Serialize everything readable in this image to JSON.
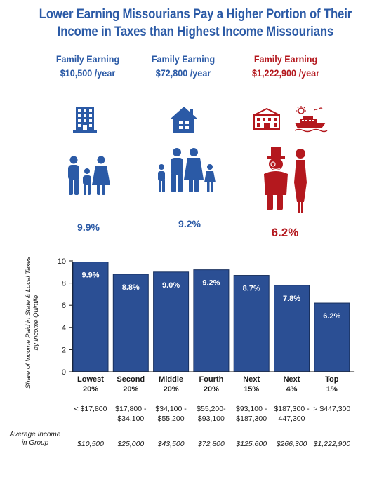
{
  "title_line1": "Lower Earning Missourians Pay a Higher Portion of Their",
  "title_line2": "Income in Taxes than Highest  Income Missourians",
  "families": [
    {
      "label": "Family Earning",
      "income": "$10,500 /year",
      "percent": "9.9%"
    },
    {
      "label": "Family Earning",
      "income": "$72,800 /year",
      "percent": "9.2%"
    },
    {
      "label": "Family Earning",
      "income": "$1,222,900 /year",
      "percent": "6.2%"
    }
  ],
  "colors": {
    "blue": "#2b5aa6",
    "red": "#b4181e",
    "bar": "#2b4f94",
    "bar_border": "#18305e"
  },
  "icons": [
    "apartment-building-icon",
    "house-icon",
    "family-icon",
    "mansion-icon",
    "yacht-icon",
    "wealthy-couple-icon"
  ],
  "chart_data": {
    "type": "bar",
    "ylabel_line1": "Share of Income Paid in State & Local Taxes",
    "ylabel_line2": "by Income Quintile",
    "ylim": [
      0,
      10
    ],
    "yticks": [
      0,
      2,
      4,
      6,
      8,
      10
    ],
    "grid": false,
    "categories": [
      {
        "line1": "Lowest",
        "line2": "20%"
      },
      {
        "line1": "Second",
        "line2": "20%"
      },
      {
        "line1": "Middle",
        "line2": "20%"
      },
      {
        "line1": "Fourth",
        "line2": "20%"
      },
      {
        "line1": "Next",
        "line2": "15%"
      },
      {
        "line1": "Next",
        "line2": "4%"
      },
      {
        "line1": "Top",
        "line2": "1%"
      }
    ],
    "values": [
      9.9,
      8.8,
      9.0,
      9.2,
      8.7,
      7.8,
      6.2
    ],
    "value_labels": [
      "9.9%",
      "8.8%",
      "9.0%",
      "9.2%",
      "8.7%",
      "7.8%",
      "6.2%"
    ],
    "income_ranges": [
      [
        "< $17,800",
        ""
      ],
      [
        "$17,800 -",
        "$34,100"
      ],
      [
        "$34,100 -",
        "$55,200"
      ],
      [
        "$55,200-",
        "$93,100"
      ],
      [
        "$93,100 -",
        "$187,300"
      ],
      [
        "$187,300 -",
        "447,300"
      ],
      [
        "> $447,300",
        ""
      ]
    ],
    "avg_label_line1": "Average Income",
    "avg_label_line2": "in Group",
    "avg_income": [
      "$10,500",
      "$25,000",
      "$43,500",
      "$72,800",
      "$125,600",
      "$266,300",
      "$1,222,900"
    ]
  }
}
